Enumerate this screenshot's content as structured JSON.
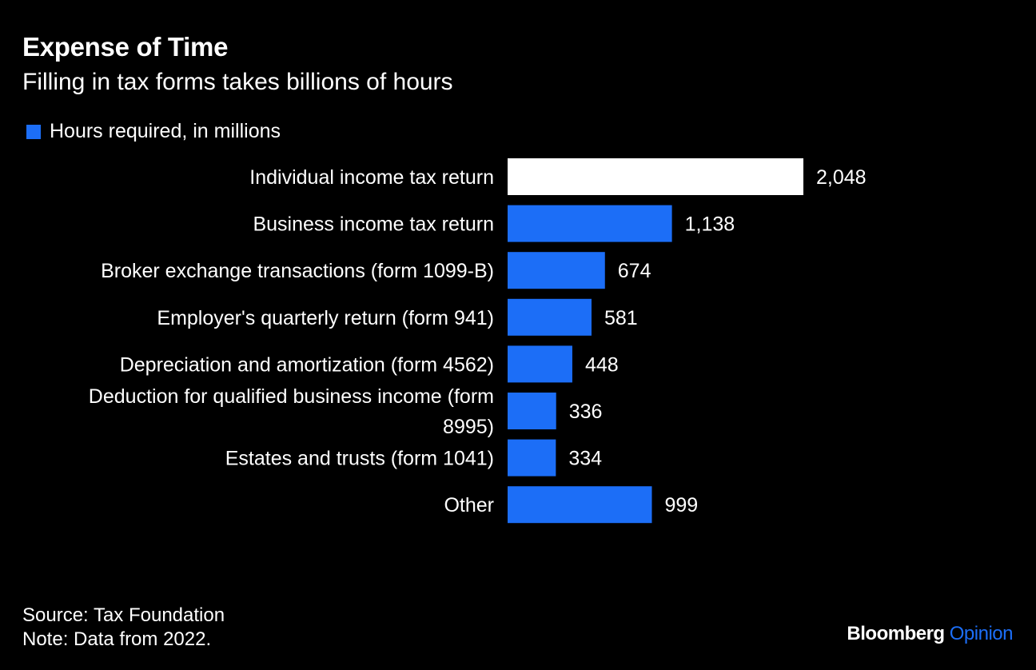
{
  "title": "Expense of Time",
  "subtitle": "Filling in tax forms takes billions of hours",
  "legend": {
    "label": "Hours required, in millions",
    "color": "#1c6ef7"
  },
  "footer": {
    "source": "Source: Tax Foundation",
    "note": "Note: Data from 2022."
  },
  "brand": {
    "name": "Bloomberg",
    "section": "Opinion",
    "section_color": "#1c6ef7"
  },
  "colors": {
    "background": "#000000",
    "bar": "#1c6ef7",
    "highlight": "#ffffff",
    "text": "#ffffff"
  },
  "chart_data": {
    "type": "bar",
    "orientation": "horizontal",
    "categories": [
      [
        "Individual income tax return"
      ],
      [
        "Business income tax return"
      ],
      [
        "Broker exchange transactions (form 1099-B)"
      ],
      [
        "Employer's quarterly return (form 941)"
      ],
      [
        "Depreciation and amortization (form 4562)"
      ],
      [
        "Deduction for qualified business income (form",
        "8995)"
      ],
      [
        "Estates and trusts (form 1041)"
      ],
      [
        "Other"
      ]
    ],
    "values": [
      2048,
      1138,
      674,
      581,
      448,
      336,
      334,
      999
    ],
    "value_labels": [
      "2,048",
      "1,138",
      "674",
      "581",
      "448",
      "336",
      "334",
      "999"
    ],
    "highlight_index": 0,
    "xlim": [
      0,
      2048
    ],
    "grid": false
  }
}
